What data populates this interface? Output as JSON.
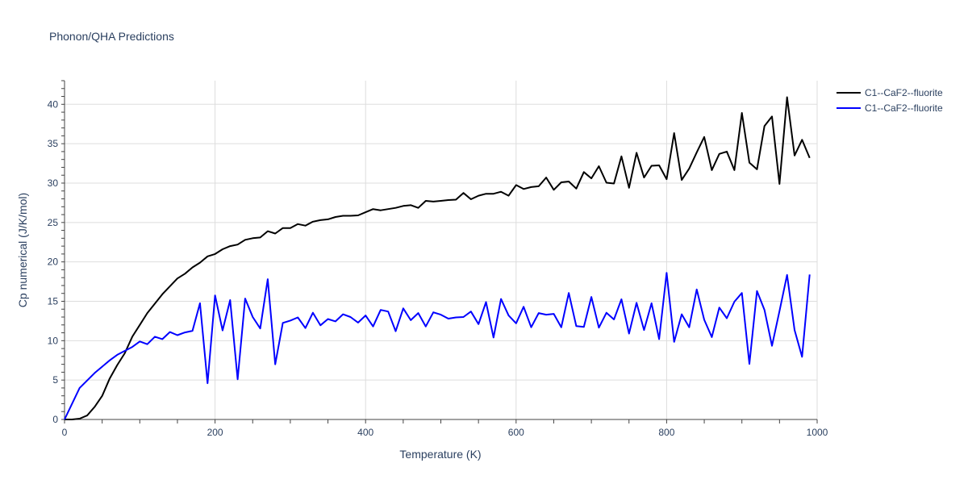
{
  "chart_data": {
    "type": "line",
    "title": "Phonon/QHA Predictions",
    "xlabel": "Temperature (K)",
    "ylabel": "Cp numerical (J/K/mol)",
    "xlim": [
      0,
      1000
    ],
    "ylim": [
      0,
      43
    ],
    "xticks": [
      0,
      200,
      400,
      600,
      800,
      1000
    ],
    "yticks": [
      0,
      5,
      10,
      15,
      20,
      25,
      30,
      35,
      40
    ],
    "x_minor_step": 50,
    "grid": true,
    "legend_position": "top-right",
    "series": [
      {
        "name": "C1--CaF2--fluorite",
        "color": "#000000",
        "x": [
          0,
          10,
          20,
          30,
          40,
          50,
          60,
          70,
          80,
          90,
          100,
          110,
          120,
          130,
          140,
          150,
          160,
          170,
          180,
          190,
          200,
          210,
          220,
          230,
          240,
          250,
          260,
          270,
          280,
          290,
          300,
          310,
          320,
          330,
          340,
          350,
          360,
          370,
          380,
          390,
          400,
          410,
          420,
          430,
          440,
          450,
          460,
          470,
          480,
          490,
          500,
          510,
          520,
          530,
          540,
          550,
          560,
          570,
          580,
          590,
          600,
          610,
          620,
          630,
          640,
          650,
          660,
          670,
          680,
          690,
          700,
          710,
          720,
          730,
          740,
          750,
          760,
          770,
          780,
          790,
          800,
          810,
          820,
          830,
          840,
          850,
          860,
          870,
          880,
          890,
          900,
          910,
          920,
          930,
          940,
          950,
          960,
          970,
          980,
          990
        ],
        "y": [
          0,
          0,
          0.1,
          0.5,
          1.6,
          3.0,
          5.2,
          6.9,
          8.4,
          10.5,
          12.0,
          13.5,
          14.7,
          15.9,
          16.9,
          17.9,
          18.5,
          19.3,
          19.9,
          20.7,
          21.0,
          21.6,
          22.0,
          22.2,
          22.8,
          23.0,
          23.1,
          23.9,
          23.6,
          24.3,
          24.3,
          24.8,
          24.6,
          25.1,
          25.3,
          25.4,
          25.7,
          25.85,
          25.85,
          25.9,
          26.3,
          26.7,
          26.55,
          26.7,
          26.85,
          27.1,
          27.2,
          26.85,
          27.75,
          27.65,
          27.75,
          27.85,
          27.9,
          28.75,
          27.95,
          28.4,
          28.65,
          28.65,
          28.9,
          28.4,
          29.75,
          29.25,
          29.5,
          29.6,
          30.7,
          29.15,
          30.1,
          30.2,
          29.3,
          31.4,
          30.6,
          32.15,
          30.05,
          29.95,
          33.4,
          29.4,
          33.85,
          30.7,
          32.2,
          32.25,
          30.5,
          36.35,
          30.4,
          31.85,
          33.9,
          35.85,
          31.65,
          33.7,
          34.0,
          31.65,
          38.9,
          32.6,
          31.75,
          37.25,
          38.45,
          29.9,
          40.9,
          33.5,
          35.5,
          33.2
        ]
      },
      {
        "name": "C1--CaF2--fluorite",
        "color": "#0000ff",
        "x": [
          0,
          20,
          40,
          60,
          70,
          80,
          90,
          100,
          110,
          120,
          130,
          140,
          150,
          160,
          170,
          180,
          190,
          200,
          210,
          220,
          230,
          240,
          250,
          260,
          270,
          280,
          290,
          300,
          310,
          320,
          330,
          340,
          350,
          360,
          370,
          380,
          390,
          400,
          410,
          420,
          430,
          440,
          450,
          460,
          470,
          480,
          490,
          500,
          510,
          520,
          530,
          540,
          550,
          560,
          570,
          580,
          590,
          600,
          610,
          620,
          630,
          640,
          650,
          660,
          670,
          680,
          690,
          700,
          710,
          720,
          730,
          740,
          750,
          760,
          770,
          780,
          790,
          800,
          810,
          820,
          830,
          840,
          850,
          860,
          870,
          880,
          890,
          900,
          910,
          920,
          930,
          940,
          950,
          960,
          970,
          980,
          990
        ],
        "y": [
          0,
          4.0,
          5.9,
          7.5,
          8.2,
          8.7,
          9.2,
          9.9,
          9.55,
          10.5,
          10.2,
          11.1,
          10.7,
          11.05,
          11.25,
          14.75,
          4.6,
          15.75,
          11.3,
          15.15,
          5.1,
          15.35,
          13.0,
          11.55,
          17.8,
          7.0,
          12.25,
          12.55,
          12.95,
          11.6,
          13.55,
          11.95,
          12.75,
          12.45,
          13.35,
          13.0,
          12.3,
          13.2,
          11.8,
          13.9,
          13.7,
          11.2,
          14.1,
          12.6,
          13.5,
          11.8,
          13.6,
          13.3,
          12.8,
          12.95,
          13.0,
          13.7,
          12.1,
          14.9,
          10.4,
          15.3,
          13.2,
          12.2,
          14.3,
          11.7,
          13.5,
          13.3,
          13.4,
          11.7,
          16.05,
          11.85,
          11.75,
          15.55,
          11.65,
          13.55,
          12.7,
          15.25,
          10.9,
          14.8,
          11.35,
          14.75,
          10.2,
          18.6,
          9.85,
          13.35,
          11.7,
          16.5,
          12.65,
          10.45,
          14.2,
          12.85,
          14.95,
          16.05,
          7.05,
          16.3,
          13.9,
          9.35,
          13.75,
          18.35,
          11.35,
          7.95,
          18.4
        ]
      }
    ]
  }
}
